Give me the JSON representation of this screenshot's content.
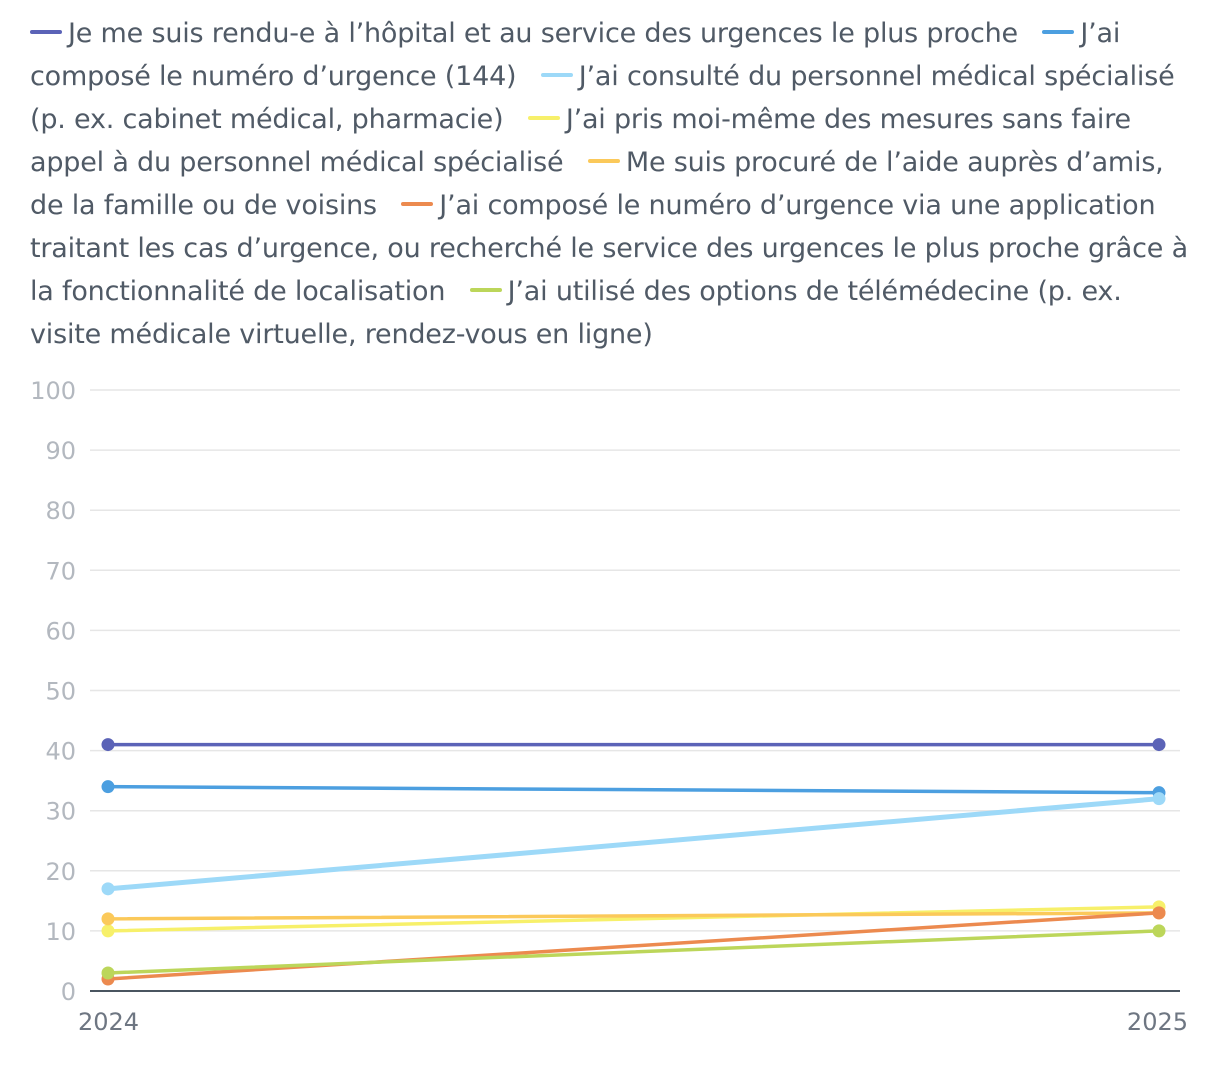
{
  "chart_data": {
    "type": "line",
    "title": "",
    "xlabel": "",
    "ylabel": "",
    "x": [
      "2024",
      "2025"
    ],
    "ylim": [
      0,
      100
    ],
    "yticks": [
      0,
      10,
      20,
      30,
      40,
      50,
      60,
      70,
      80,
      90,
      100
    ],
    "grid": true,
    "legend_position": "top",
    "series": [
      {
        "name": "Je me suis rendu-e à l’hôpital et au service des urgences le plus proche",
        "color": "#5b63b7",
        "values": [
          41,
          41
        ]
      },
      {
        "name": "J’ai composé le numéro d’urgence (144)",
        "color": "#4c9fe0",
        "values": [
          34,
          33
        ]
      },
      {
        "name": "J’ai consulté du personnel médical spécialisé (p. ex. cabinet médical, pharmacie)",
        "color": "#9dd9f8",
        "values": [
          17,
          32
        ]
      },
      {
        "name": "J’ai pris moi-même des mesures sans faire appel à du personnel médical spécialisé",
        "color": "#f7f06a",
        "values": [
          10,
          14
        ]
      },
      {
        "name": "Me suis procuré de l’aide auprès d’amis, de la famille ou de voisins",
        "color": "#fbc95a",
        "values": [
          12,
          13
        ]
      },
      {
        "name": "J’ai composé le numéro d’urgence via une application traitant les cas d’urgence, ou recherché le service des urgences le plus proche grâce à la fonctionnalité de localisation",
        "color": "#ec8a4f",
        "values": [
          2,
          13
        ]
      },
      {
        "name": "J’ai utilisé des options de télémédecine (p. ex. visite médicale virtuelle, rendez-vous en ligne)",
        "color": "#bcd65a",
        "values": [
          3,
          10
        ]
      }
    ]
  }
}
